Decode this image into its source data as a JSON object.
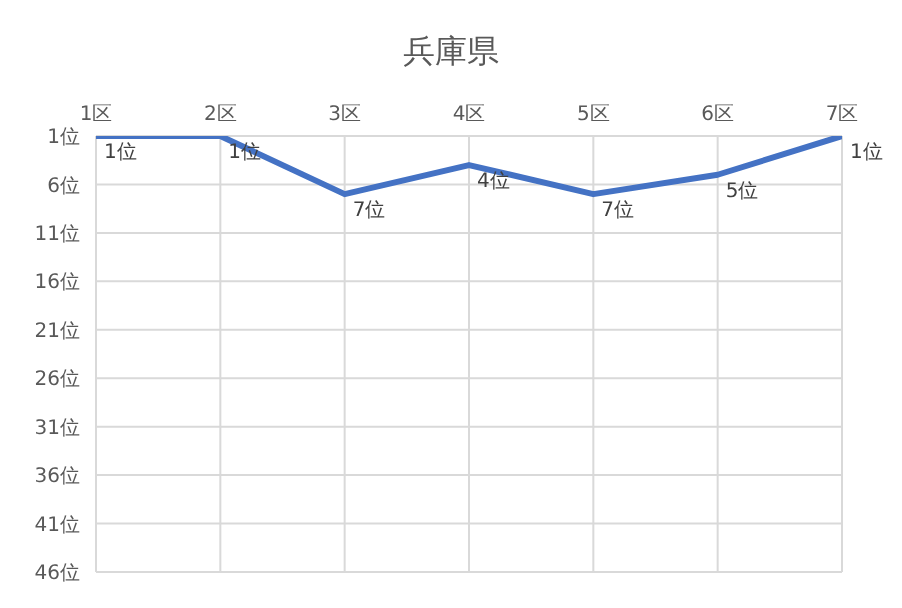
{
  "chart_data": {
    "type": "line",
    "title": "兵庫県",
    "categories": [
      "1区",
      "2区",
      "3区",
      "4区",
      "5区",
      "6区",
      "7区"
    ],
    "series": [
      {
        "color": "#4472c4",
        "values": [
          1,
          1,
          7,
          4,
          7,
          5,
          1
        ],
        "value_labels": [
          "1位",
          "1位",
          "7位",
          "4位",
          "7位",
          "5位",
          "1位"
        ]
      }
    ],
    "ylim": [
      46,
      1
    ],
    "yticks": [
      {
        "value": 1,
        "label": "1位"
      },
      {
        "value": 6,
        "label": "6位"
      },
      {
        "value": 11,
        "label": "11位"
      },
      {
        "value": 16,
        "label": "16位"
      },
      {
        "value": 21,
        "label": "21位"
      },
      {
        "value": 26,
        "label": "26位"
      },
      {
        "value": 31,
        "label": "31位"
      },
      {
        "value": 36,
        "label": "36位"
      },
      {
        "value": 41,
        "label": "41位"
      },
      {
        "value": 46,
        "label": "46位"
      }
    ],
    "grid": true,
    "marker": "none",
    "line_style": "solid"
  }
}
